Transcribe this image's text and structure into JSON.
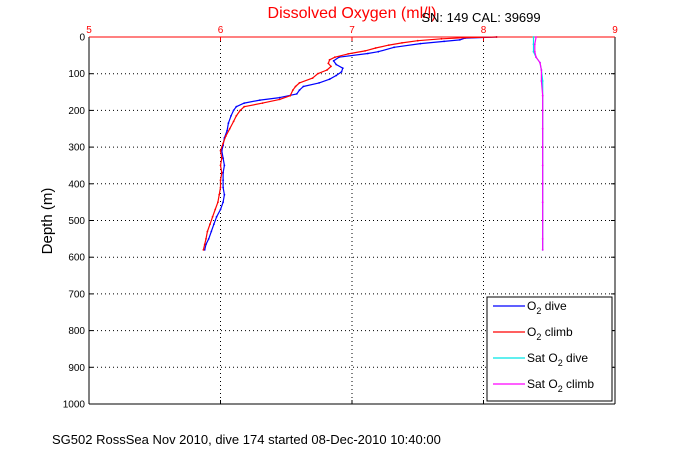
{
  "chart_data": {
    "type": "line",
    "title": "Dissolved Oxygen (ml/l)",
    "annotation": "SN: 149  CAL: 39699",
    "ylabel": "Depth (m)",
    "xlabel": "",
    "footer": "SG502 RossSea Nov 2010, dive 174 started 08-Dec-2010 10:40:00",
    "xlim": [
      5,
      9
    ],
    "ylim": [
      0,
      1000
    ],
    "y_reversed": true,
    "x_axis_position": "top",
    "grid": true,
    "x_ticks": [
      "5",
      "6",
      "7",
      "8",
      "9"
    ],
    "y_ticks": [
      "0",
      "100",
      "200",
      "300",
      "400",
      "500",
      "600",
      "700",
      "800",
      "900",
      "1000"
    ],
    "legend_position": "bottom-right",
    "colors": {
      "title": "#ff0000",
      "x_axis": "#ff0000",
      "y_axis": "#000000",
      "grid": "#000000"
    },
    "series": [
      {
        "name": "O2 dive",
        "legend_main": "O",
        "legend_sub": "2",
        "legend_rest": " dive",
        "color": "#0000ff",
        "points": [
          [
            8.1,
            0
          ],
          [
            7.86,
            3
          ],
          [
            7.82,
            8
          ],
          [
            7.7,
            12
          ],
          [
            7.52,
            18
          ],
          [
            7.32,
            28
          ],
          [
            7.2,
            40
          ],
          [
            7.12,
            45
          ],
          [
            6.9,
            55
          ],
          [
            6.86,
            65
          ],
          [
            6.88,
            75
          ],
          [
            6.93,
            85
          ],
          [
            6.92,
            95
          ],
          [
            6.88,
            105
          ],
          [
            6.83,
            115
          ],
          [
            6.75,
            125
          ],
          [
            6.63,
            135
          ],
          [
            6.6,
            145
          ],
          [
            6.58,
            155
          ],
          [
            6.45,
            165
          ],
          [
            6.3,
            172
          ],
          [
            6.18,
            180
          ],
          [
            6.12,
            190
          ],
          [
            6.1,
            200
          ],
          [
            6.08,
            215
          ],
          [
            6.06,
            235
          ],
          [
            6.05,
            255
          ],
          [
            6.03,
            275
          ],
          [
            6.02,
            295
          ],
          [
            6.01,
            310
          ],
          [
            6.02,
            330
          ],
          [
            6.03,
            350
          ],
          [
            6.02,
            370
          ],
          [
            6.02,
            390
          ],
          [
            6.02,
            410
          ],
          [
            6.03,
            430
          ],
          [
            6.02,
            450
          ],
          [
            6.0,
            470
          ],
          [
            5.97,
            490
          ],
          [
            5.95,
            510
          ],
          [
            5.93,
            530
          ],
          [
            5.91,
            550
          ],
          [
            5.89,
            565
          ],
          [
            5.88,
            580
          ]
        ]
      },
      {
        "name": "O2 climb",
        "legend_main": "O",
        "legend_sub": "2",
        "legend_rest": " climb",
        "color": "#ff0000",
        "points": [
          [
            8.1,
            0
          ],
          [
            7.86,
            2
          ],
          [
            7.68,
            5
          ],
          [
            7.5,
            10
          ],
          [
            7.38,
            16
          ],
          [
            7.28,
            22
          ],
          [
            7.18,
            30
          ],
          [
            7.1,
            38
          ],
          [
            6.97,
            46
          ],
          [
            6.87,
            55
          ],
          [
            6.83,
            62
          ],
          [
            6.82,
            72
          ],
          [
            6.84,
            80
          ],
          [
            6.81,
            90
          ],
          [
            6.74,
            100
          ],
          [
            6.7,
            112
          ],
          [
            6.6,
            125
          ],
          [
            6.57,
            135
          ],
          [
            6.55,
            145
          ],
          [
            6.53,
            160
          ],
          [
            6.45,
            170
          ],
          [
            6.32,
            180
          ],
          [
            6.18,
            190
          ],
          [
            6.15,
            200
          ],
          [
            6.12,
            215
          ],
          [
            6.1,
            230
          ],
          [
            6.07,
            250
          ],
          [
            6.04,
            270
          ],
          [
            6.02,
            290
          ],
          [
            6.0,
            310
          ],
          [
            6.01,
            330
          ],
          [
            6.0,
            350
          ],
          [
            6.01,
            370
          ],
          [
            6.0,
            390
          ],
          [
            6.0,
            410
          ],
          [
            5.99,
            430
          ],
          [
            5.98,
            450
          ],
          [
            5.96,
            470
          ],
          [
            5.94,
            490
          ],
          [
            5.92,
            510
          ],
          [
            5.9,
            530
          ],
          [
            5.89,
            550
          ],
          [
            5.88,
            565
          ],
          [
            5.87,
            580
          ]
        ]
      },
      {
        "name": "Sat O2 dive",
        "legend_main": "Sat O",
        "legend_sub": "2",
        "legend_rest": " dive",
        "color": "#00e5e5",
        "points": [
          [
            8.38,
            0
          ],
          [
            8.38,
            20
          ],
          [
            8.38,
            40
          ],
          [
            8.4,
            55
          ],
          [
            8.43,
            70
          ],
          [
            8.44,
            90
          ],
          [
            8.45,
            120
          ],
          [
            8.45,
            160
          ],
          [
            8.45,
            200
          ],
          [
            8.45,
            250
          ],
          [
            8.45,
            300
          ],
          [
            8.45,
            350
          ],
          [
            8.45,
            400
          ],
          [
            8.45,
            450
          ],
          [
            8.45,
            500
          ],
          [
            8.45,
            550
          ],
          [
            8.45,
            580
          ]
        ]
      },
      {
        "name": "Sat O2 climb",
        "legend_main": "Sat O",
        "legend_sub": "2",
        "legend_rest": " climb",
        "color": "#ff00ff",
        "points": [
          [
            8.4,
            0
          ],
          [
            8.39,
            20
          ],
          [
            8.39,
            40
          ],
          [
            8.4,
            55
          ],
          [
            8.43,
            70
          ],
          [
            8.44,
            90
          ],
          [
            8.44,
            120
          ],
          [
            8.45,
            160
          ],
          [
            8.45,
            200
          ],
          [
            8.45,
            250
          ],
          [
            8.45,
            300
          ],
          [
            8.45,
            350
          ],
          [
            8.45,
            400
          ],
          [
            8.45,
            450
          ],
          [
            8.45,
            500
          ],
          [
            8.45,
            550
          ],
          [
            8.45,
            580
          ]
        ]
      }
    ]
  }
}
